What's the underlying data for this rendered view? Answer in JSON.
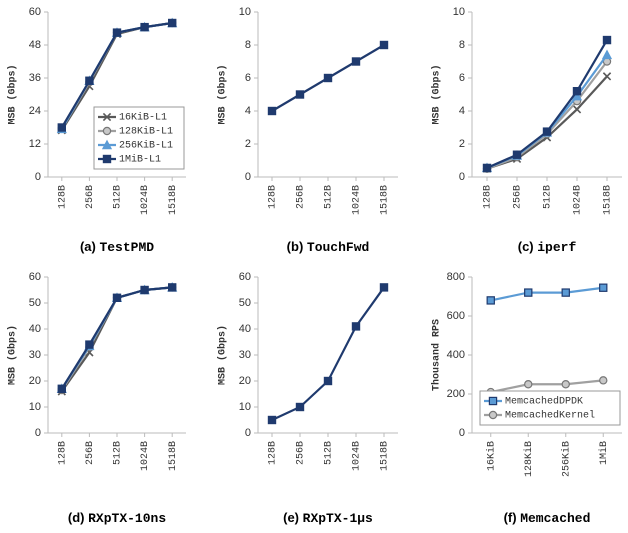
{
  "chart_data": [
    {
      "type": "line",
      "label": "(a)",
      "title": "TestPMD",
      "ylabel": "MSB (Gbps)",
      "categories": [
        "128B",
        "256B",
        "512B",
        "1024B",
        "1518B"
      ],
      "ylim": [
        0,
        60
      ],
      "yticks": [
        0,
        12,
        24,
        36,
        48,
        60
      ],
      "legend": "lower right",
      "series": [
        {
          "name": "16KiB-L1",
          "color": "#595959",
          "marker": "x",
          "values": [
            17,
            33,
            52,
            54.5,
            56
          ]
        },
        {
          "name": "128KiB-L1",
          "color": "#a0a0a0",
          "marker": "circle",
          "values": [
            17.5,
            34.5,
            52.5,
            54.5,
            56
          ]
        },
        {
          "name": "256KiB-L1",
          "color": "#5b9bd5",
          "marker": "triangle",
          "values": [
            17.5,
            35,
            52.5,
            54.5,
            56
          ]
        },
        {
          "name": "1MiB-L1",
          "color": "#1f3a6e",
          "marker": "square",
          "values": [
            18,
            35,
            52.5,
            54.5,
            56
          ]
        }
      ]
    },
    {
      "type": "line",
      "label": "(b)",
      "title": "TouchFwd",
      "ylabel": "MSB (Gbps)",
      "categories": [
        "128B",
        "256B",
        "512B",
        "1024B",
        "1518B"
      ],
      "ylim": [
        0,
        10
      ],
      "yticks": [
        0,
        2,
        4,
        6,
        8,
        10
      ],
      "series": [
        {
          "color": "#1f3a6e",
          "marker": "square",
          "values": [
            4,
            5,
            6,
            7,
            8
          ]
        }
      ]
    },
    {
      "type": "line",
      "label": "(c)",
      "title": "iperf",
      "ylabel": "MSB (Gbps)",
      "categories": [
        "128B",
        "256B",
        "512B",
        "1024B",
        "1518B"
      ],
      "ylim": [
        0,
        10
      ],
      "yticks": [
        0,
        2,
        4,
        6,
        8,
        10
      ],
      "series": [
        {
          "color": "#595959",
          "marker": "x",
          "values": [
            0.5,
            1.1,
            2.4,
            4.1,
            6.1
          ]
        },
        {
          "color": "#a0a0a0",
          "marker": "circle",
          "values": [
            0.5,
            1.2,
            2.6,
            4.6,
            7
          ]
        },
        {
          "color": "#5b9bd5",
          "marker": "triangle",
          "values": [
            0.55,
            1.3,
            2.7,
            4.9,
            7.4
          ]
        },
        {
          "color": "#1f3a6e",
          "marker": "square",
          "values": [
            0.55,
            1.35,
            2.75,
            5.2,
            8.3
          ]
        }
      ]
    },
    {
      "type": "line",
      "label": "(d)",
      "title": "RXpTX-10ns",
      "ylabel": "MSB (Gbps)",
      "categories": [
        "128B",
        "256B",
        "512B",
        "1024B",
        "1518B"
      ],
      "ylim": [
        0,
        60
      ],
      "yticks": [
        0,
        10,
        20,
        30,
        40,
        50,
        60
      ],
      "series": [
        {
          "color": "#595959",
          "marker": "x",
          "values": [
            16,
            31,
            52,
            55,
            56
          ]
        },
        {
          "color": "#a0a0a0",
          "marker": "circle",
          "values": [
            16.5,
            33,
            52,
            55,
            56
          ]
        },
        {
          "color": "#5b9bd5",
          "marker": "triangle",
          "values": [
            17,
            33.5,
            52,
            55,
            56
          ]
        },
        {
          "color": "#1f3a6e",
          "marker": "square",
          "values": [
            17,
            34,
            52,
            55,
            56
          ]
        }
      ]
    },
    {
      "type": "line",
      "label": "(e)",
      "title": "RXpTX-1µs",
      "ylabel": "MSB (Gbps)",
      "categories": [
        "128B",
        "256B",
        "512B",
        "1024B",
        "1518B"
      ],
      "ylim": [
        0,
        60
      ],
      "yticks": [
        0,
        10,
        20,
        30,
        40,
        50,
        60
      ],
      "series": [
        {
          "color": "#1f3a6e",
          "marker": "square",
          "values": [
            5,
            10,
            20,
            41,
            56
          ]
        }
      ]
    },
    {
      "type": "line",
      "label": "(f)",
      "title": "Memcached",
      "ylabel": "Thousand RPS",
      "categories": [
        "16KiB",
        "128KiB",
        "256KiB",
        "1MiB"
      ],
      "ylim": [
        0,
        800
      ],
      "yticks": [
        0,
        200,
        400,
        600,
        800
      ],
      "legend": "lower right",
      "series": [
        {
          "name": "MemcachedDPDK",
          "color": "#5b9bd5",
          "marker": "square",
          "values": [
            680,
            720,
            720,
            745
          ]
        },
        {
          "name": "MemcachedKernel",
          "color": "#a0a0a0",
          "marker": "circle",
          "values": [
            210,
            250,
            250,
            270
          ]
        }
      ]
    }
  ]
}
